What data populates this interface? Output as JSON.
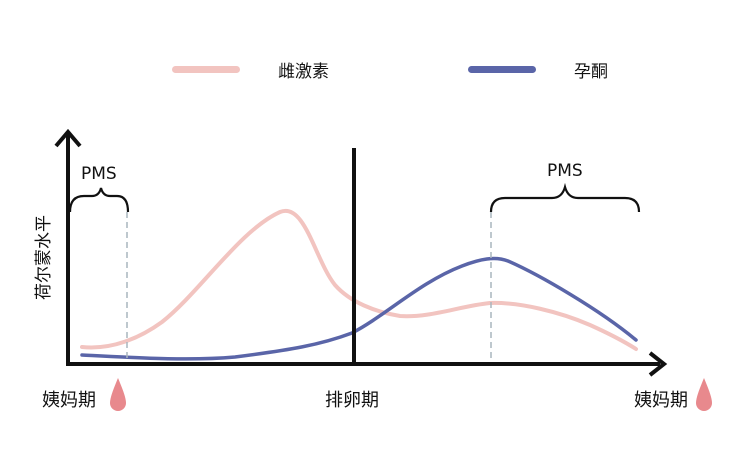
{
  "legend": {
    "estrogen": {
      "label": "雌激素",
      "color": "#f2c4c0"
    },
    "progesterone": {
      "label": "孕酮",
      "color": "#5a65a8"
    }
  },
  "axes": {
    "ylabel": "荷尔蒙水平",
    "x_start_label": "姨妈期",
    "x_mid_label": "排卵期",
    "x_end_label": "姨妈期"
  },
  "annotations": {
    "pms_left": "PMS",
    "pms_right": "PMS"
  },
  "colors": {
    "axis": "#111111",
    "dashed": "#a9b5bd",
    "drop": "#e8898d"
  },
  "icons": {
    "period_start": "blood-drop-icon",
    "period_end": "blood-drop-icon"
  }
}
